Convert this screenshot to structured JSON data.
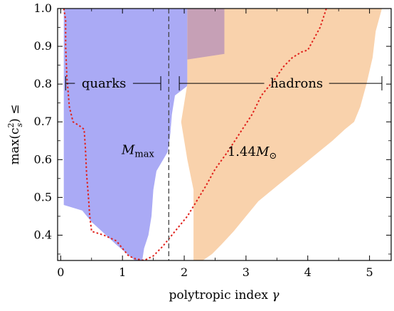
{
  "chart_data": {
    "type": "area",
    "xlabel": "polytropic index γ",
    "ylabel": "max(c²ₛ) ≤",
    "ylabel_parts": {
      "main": "max(c",
      "sup": "2",
      "sub": "s",
      "tail": ") ≤"
    },
    "xlabel_parts": {
      "main": "polytropic index ",
      "italic": "γ"
    },
    "xlim": [
      -0.05,
      5.35
    ],
    "ylim": [
      0.333,
      1.0
    ],
    "x_ticks": [
      0,
      1,
      2,
      3,
      4,
      5
    ],
    "x_tick_labels": [
      "0",
      "1",
      "2",
      "3",
      "4",
      "5"
    ],
    "y_ticks": [
      0.4,
      0.5,
      0.6,
      0.7,
      0.8,
      0.9,
      1.0
    ],
    "y_tick_labels": [
      "0.4",
      "0.5",
      "0.6",
      "0.7",
      "0.8",
      "0.9",
      "1.0"
    ],
    "colors": {
      "mmax_region": "#aaaaf5",
      "solar_region": "#f9d2ac",
      "overlap": "#c6a0b6",
      "dotted_curve": "#e0201a",
      "dashed_line": "#444444"
    },
    "regions": [
      {
        "id": "mmax",
        "label_main": "M",
        "label_sub": "max",
        "label_x": 1.25,
        "label_y": 0.615,
        "polygon": [
          [
            0.05,
            1.0
          ],
          [
            2.05,
            1.0
          ],
          [
            2.05,
            0.795
          ],
          [
            1.85,
            0.77
          ],
          [
            1.8,
            0.72
          ],
          [
            1.77,
            0.66
          ],
          [
            1.73,
            0.62
          ],
          [
            1.55,
            0.57
          ],
          [
            1.5,
            0.52
          ],
          [
            1.47,
            0.45
          ],
          [
            1.42,
            0.4
          ],
          [
            1.35,
            0.365
          ],
          [
            1.32,
            0.333
          ],
          [
            1.2,
            0.333
          ],
          [
            0.9,
            0.375
          ],
          [
            0.6,
            0.42
          ],
          [
            0.5,
            0.435
          ],
          [
            0.35,
            0.465
          ],
          [
            0.05,
            0.48
          ]
        ]
      },
      {
        "id": "solar",
        "label_main": "1.44M",
        "label_sub": "⊙",
        "label_x": 3.1,
        "label_y": 0.61,
        "polygon": [
          [
            2.05,
            1.0
          ],
          [
            5.2,
            1.0
          ],
          [
            5.1,
            0.94
          ],
          [
            5.05,
            0.87
          ],
          [
            4.95,
            0.8
          ],
          [
            4.85,
            0.74
          ],
          [
            4.75,
            0.7
          ],
          [
            4.6,
            0.68
          ],
          [
            4.4,
            0.65
          ],
          [
            4.1,
            0.61
          ],
          [
            3.8,
            0.57
          ],
          [
            3.5,
            0.53
          ],
          [
            3.2,
            0.49
          ],
          [
            3.0,
            0.45
          ],
          [
            2.8,
            0.41
          ],
          [
            2.6,
            0.375
          ],
          [
            2.45,
            0.35
          ],
          [
            2.3,
            0.333
          ],
          [
            2.15,
            0.333
          ],
          [
            2.15,
            0.52
          ],
          [
            2.05,
            0.6
          ],
          [
            1.95,
            0.7
          ],
          [
            2.05,
            0.8
          ]
        ]
      }
    ],
    "overlap_polygon": [
      [
        2.05,
        1.0
      ],
      [
        2.65,
        1.0
      ],
      [
        2.65,
        0.88
      ],
      [
        2.05,
        0.865
      ]
    ],
    "dotted_curve": [
      [
        0.05,
        1.0
      ],
      [
        0.08,
        0.97
      ],
      [
        0.08,
        0.9
      ],
      [
        0.1,
        0.82
      ],
      [
        0.14,
        0.74
      ],
      [
        0.2,
        0.7
      ],
      [
        0.3,
        0.69
      ],
      [
        0.38,
        0.68
      ],
      [
        0.4,
        0.63
      ],
      [
        0.42,
        0.56
      ],
      [
        0.45,
        0.5
      ],
      [
        0.47,
        0.45
      ],
      [
        0.5,
        0.41
      ],
      [
        0.7,
        0.4
      ],
      [
        0.9,
        0.385
      ],
      [
        1.0,
        0.365
      ],
      [
        1.1,
        0.345
      ],
      [
        1.2,
        0.338
      ],
      [
        1.35,
        0.333
      ],
      [
        1.5,
        0.345
      ],
      [
        1.65,
        0.37
      ],
      [
        1.85,
        0.41
      ],
      [
        2.05,
        0.45
      ],
      [
        2.2,
        0.49
      ],
      [
        2.35,
        0.53
      ],
      [
        2.5,
        0.575
      ],
      [
        2.7,
        0.62
      ],
      [
        2.9,
        0.67
      ],
      [
        3.1,
        0.72
      ],
      [
        3.25,
        0.77
      ],
      [
        3.4,
        0.8
      ],
      [
        3.5,
        0.82
      ],
      [
        3.6,
        0.845
      ],
      [
        3.75,
        0.87
      ],
      [
        3.9,
        0.885
      ],
      [
        4.0,
        0.89
      ],
      [
        4.1,
        0.92
      ],
      [
        4.2,
        0.95
      ],
      [
        4.25,
        0.975
      ],
      [
        4.3,
        1.0
      ]
    ],
    "dashed_line_x": 1.75,
    "ranges": [
      {
        "label": "quarks",
        "x_start": 0.08,
        "x_end": 1.62,
        "y": 0.802,
        "text_x": 0.7
      },
      {
        "label": "hadrons",
        "x_start": 1.92,
        "x_end": 5.2,
        "y": 0.802,
        "text_x": 3.82
      }
    ]
  }
}
